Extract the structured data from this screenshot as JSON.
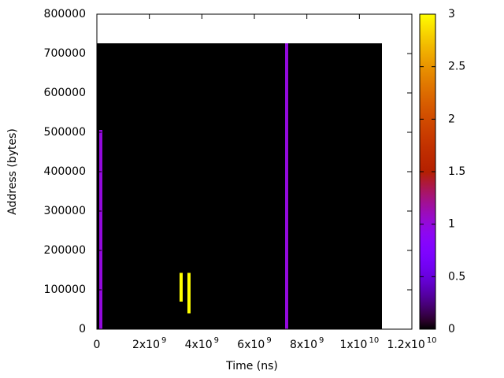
{
  "chart_data": {
    "type": "heatmap",
    "xlabel": "Time (ns)",
    "ylabel": "Address (bytes)",
    "xlim": [
      0,
      12000000000
    ],
    "ylim": [
      0,
      800000
    ],
    "clim": [
      0,
      3
    ],
    "xticks": [
      0,
      {
        "value": 2000000000,
        "label": "2x10",
        "exponent": "9"
      },
      {
        "value": 4000000000,
        "label": "4x10",
        "exponent": "9"
      },
      {
        "value": 6000000000,
        "label": "6x10",
        "exponent": "9"
      },
      {
        "value": 8000000000,
        "label": "8x10",
        "exponent": "9"
      },
      {
        "value": 10000000000,
        "label": "1x10",
        "exponent": "10"
      },
      {
        "value": 12000000000,
        "label": "1.2x10",
        "exponent": "10"
      }
    ],
    "yticks": [
      0,
      100000,
      200000,
      300000,
      400000,
      500000,
      600000,
      700000,
      800000
    ],
    "cticks": [
      0,
      0.5,
      1,
      1.5,
      2,
      2.5,
      3
    ],
    "background": {
      "x": [
        0,
        10860000000
      ],
      "y": [
        0,
        726000
      ],
      "value": 0
    },
    "cells": [
      {
        "x": 150000000,
        "y": [
          0,
          506000
        ],
        "value": 1
      },
      {
        "x": 3210000000,
        "y": [
          70000,
          143000
        ],
        "value": 3
      },
      {
        "x": 3510000000,
        "y": [
          40000,
          143000
        ],
        "value": 3
      },
      {
        "x": 7230000000,
        "y": [
          0,
          726000
        ],
        "value": 1
      }
    ]
  }
}
